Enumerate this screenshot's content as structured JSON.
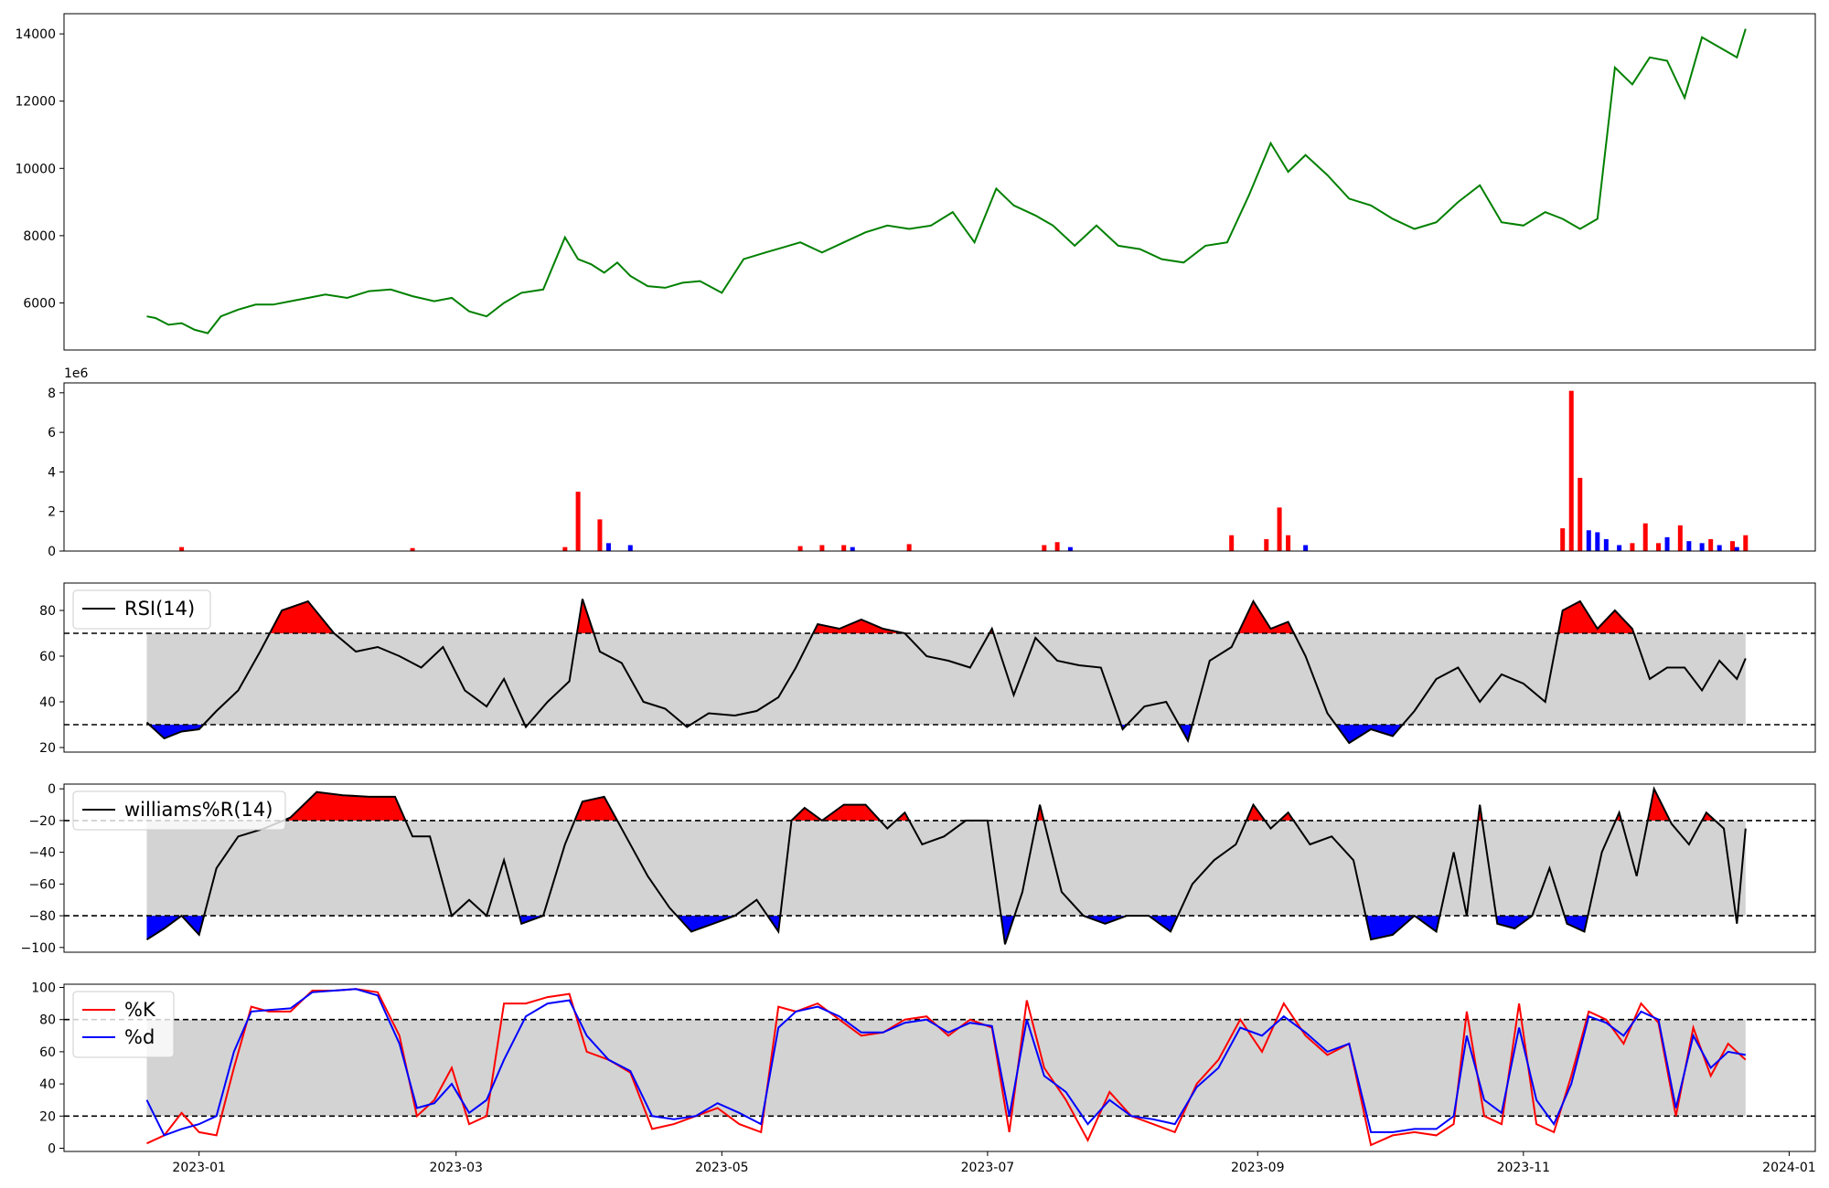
{
  "x_ticks": [
    "2023-01",
    "2023-03",
    "2023-05",
    "2023-07",
    "2023-09",
    "2023-11",
    "2024-01"
  ],
  "colors": {
    "price": "#008000",
    "up": "#ff0000",
    "down": "#0000ff",
    "band": "#d3d3d3",
    "line": "#000000"
  },
  "chart_data": [
    {
      "type": "line",
      "title": "",
      "ylabel": "",
      "ylim": [
        4600,
        14600
      ],
      "yticks": [
        "6000",
        "8000",
        "10000",
        "12000",
        "14000"
      ],
      "x": [
        "2022-12-20",
        "2022-12-22",
        "2022-12-25",
        "2022-12-28",
        "2022-12-31",
        "2023-01-03",
        "2023-01-06",
        "2023-01-10",
        "2023-01-14",
        "2023-01-18",
        "2023-01-22",
        "2023-01-26",
        "2023-01-30",
        "2023-02-04",
        "2023-02-09",
        "2023-02-14",
        "2023-02-19",
        "2023-02-24",
        "2023-02-28",
        "2023-03-04",
        "2023-03-08",
        "2023-03-12",
        "2023-03-16",
        "2023-03-21",
        "2023-03-26",
        "2023-03-29",
        "2023-04-01",
        "2023-04-04",
        "2023-04-07",
        "2023-04-10",
        "2023-04-14",
        "2023-04-18",
        "2023-04-22",
        "2023-04-26",
        "2023-05-01",
        "2023-05-06",
        "2023-05-11",
        "2023-05-15",
        "2023-05-19",
        "2023-05-24",
        "2023-05-29",
        "2023-06-03",
        "2023-06-08",
        "2023-06-13",
        "2023-06-18",
        "2023-06-23",
        "2023-06-28",
        "2023-07-03",
        "2023-07-07",
        "2023-07-12",
        "2023-07-16",
        "2023-07-21",
        "2023-07-26",
        "2023-07-31",
        "2023-08-05",
        "2023-08-10",
        "2023-08-15",
        "2023-08-20",
        "2023-08-25",
        "2023-08-30",
        "2023-09-04",
        "2023-09-08",
        "2023-09-12",
        "2023-09-17",
        "2023-09-22",
        "2023-09-27",
        "2023-10-02",
        "2023-10-07",
        "2023-10-12",
        "2023-10-17",
        "2023-10-22",
        "2023-10-27",
        "2023-11-01",
        "2023-11-06",
        "2023-11-10",
        "2023-11-14",
        "2023-11-18",
        "2023-11-22",
        "2023-11-26",
        "2023-11-30",
        "2023-12-04",
        "2023-12-08",
        "2023-12-12",
        "2023-12-16",
        "2023-12-20",
        "2023-12-22"
      ],
      "series": [
        {
          "values": [
            5600,
            5550,
            5350,
            5400,
            5200,
            5100,
            5600,
            5800,
            5950,
            5950,
            6050,
            6150,
            6250,
            6150,
            6350,
            6400,
            6200,
            6050,
            6150,
            5750,
            5600,
            6000,
            6300,
            6400,
            7950,
            7300,
            7150,
            6900,
            7200,
            6800,
            6500,
            6450,
            6600,
            6650,
            6300,
            7300,
            7500,
            7650,
            7800,
            7500,
            7800,
            8100,
            8300,
            8200,
            8300,
            8700,
            7800,
            9400,
            8900,
            8600,
            8300,
            7700,
            8300,
            7700,
            7600,
            7300,
            7200,
            7700,
            7800,
            9200,
            10750,
            9900,
            10400,
            9800,
            9100,
            8900,
            8500,
            8200,
            8400,
            9000,
            9500,
            8400,
            8300,
            8700,
            8500,
            8200,
            8500,
            13000,
            12500,
            13300,
            13200,
            12100,
            13900,
            13600,
            13300,
            14150
          ]
        }
      ]
    },
    {
      "type": "bar",
      "title": "",
      "ylabel": "",
      "offset_label": "1e6",
      "ylim": [
        0,
        8.5
      ],
      "yticks": [
        "0",
        "2",
        "4",
        "6",
        "8"
      ],
      "series": [
        {
          "x": [
            "2022-12-28",
            "2023-02-19",
            "2023-03-26",
            "2023-03-29",
            "2023-04-03",
            "2023-05-19",
            "2023-05-24",
            "2023-05-29",
            "2023-06-13",
            "2023-07-14",
            "2023-07-17",
            "2023-08-26",
            "2023-09-03",
            "2023-09-06",
            "2023-09-08",
            "2023-11-10",
            "2023-11-12",
            "2023-11-14",
            "2023-11-26",
            "2023-11-29",
            "2023-12-02",
            "2023-12-07",
            "2023-12-14",
            "2023-12-19",
            "2023-12-22"
          ],
          "values": [
            0.2,
            0.15,
            0.2,
            3.0,
            1.6,
            0.25,
            0.3,
            0.3,
            0.35,
            0.3,
            0.45,
            0.8,
            0.6,
            2.2,
            0.8,
            1.15,
            8.1,
            3.7,
            0.4,
            1.4,
            0.4,
            1.3,
            0.6,
            0.5,
            0.8
          ]
        },
        {
          "x": [
            "2023-04-05",
            "2023-04-10",
            "2023-05-31",
            "2023-07-20",
            "2023-09-12",
            "2023-11-16",
            "2023-11-18",
            "2023-11-20",
            "2023-11-23",
            "2023-12-04",
            "2023-12-09",
            "2023-12-12",
            "2023-12-16",
            "2023-12-20"
          ],
          "values": [
            0.4,
            0.3,
            0.2,
            0.2,
            0.3,
            1.05,
            0.95,
            0.6,
            0.3,
            0.7,
            0.5,
            0.4,
            0.3,
            0.2
          ]
        }
      ]
    },
    {
      "type": "line",
      "title": "",
      "ylim": [
        18,
        92
      ],
      "yticks": [
        "20",
        "40",
        "60",
        "80"
      ],
      "thresholds": [
        70,
        30
      ],
      "x": [
        "2022-12-20",
        "2022-12-24",
        "2022-12-28",
        "2023-01-01",
        "2023-01-05",
        "2023-01-10",
        "2023-01-15",
        "2023-01-20",
        "2023-01-26",
        "2023-02-01",
        "2023-02-06",
        "2023-02-11",
        "2023-02-16",
        "2023-02-21",
        "2023-02-26",
        "2023-03-03",
        "2023-03-08",
        "2023-03-12",
        "2023-03-17",
        "2023-03-22",
        "2023-03-27",
        "2023-03-30",
        "2023-04-03",
        "2023-04-08",
        "2023-04-13",
        "2023-04-18",
        "2023-04-23",
        "2023-04-28",
        "2023-05-04",
        "2023-05-09",
        "2023-05-14",
        "2023-05-18",
        "2023-05-23",
        "2023-05-28",
        "2023-06-02",
        "2023-06-07",
        "2023-06-12",
        "2023-06-17",
        "2023-06-22",
        "2023-06-27",
        "2023-07-02",
        "2023-07-07",
        "2023-07-12",
        "2023-07-17",
        "2023-07-22",
        "2023-07-27",
        "2023-08-01",
        "2023-08-06",
        "2023-08-11",
        "2023-08-16",
        "2023-08-21",
        "2023-08-26",
        "2023-08-31",
        "2023-09-04",
        "2023-09-08",
        "2023-09-12",
        "2023-09-17",
        "2023-09-22",
        "2023-09-27",
        "2023-10-02",
        "2023-10-07",
        "2023-10-12",
        "2023-10-17",
        "2023-10-22",
        "2023-10-27",
        "2023-11-01",
        "2023-11-06",
        "2023-11-10",
        "2023-11-14",
        "2023-11-18",
        "2023-11-22",
        "2023-11-26",
        "2023-11-30",
        "2023-12-04",
        "2023-12-08",
        "2023-12-12",
        "2023-12-16",
        "2023-12-20",
        "2023-12-22"
      ],
      "series": [
        {
          "name": "RSI(14)",
          "values": [
            31,
            24,
            27,
            28,
            36,
            45,
            62,
            80,
            84,
            70,
            62,
            64,
            60,
            55,
            64,
            45,
            38,
            50,
            29,
            40,
            49,
            85,
            62,
            57,
            40,
            37,
            29,
            35,
            34,
            36,
            42,
            55,
            74,
            72,
            76,
            72,
            70,
            60,
            58,
            55,
            72,
            43,
            68,
            58,
            56,
            55,
            28,
            38,
            40,
            23,
            58,
            64,
            84,
            72,
            75,
            60,
            35,
            22,
            28,
            25,
            36,
            50,
            55,
            40,
            52,
            48,
            40,
            80,
            84,
            72,
            80,
            72,
            50,
            55,
            55,
            45,
            58,
            50,
            59
          ]
        }
      ]
    },
    {
      "type": "line",
      "title": "",
      "ylim": [
        -103,
        3
      ],
      "yticks": [
        "0",
        "−20",
        "−40",
        "−60",
        "−80",
        "−100"
      ],
      "thresholds": [
        -20,
        -80
      ],
      "x": [
        "2022-12-20",
        "2022-12-24",
        "2022-12-28",
        "2023-01-01",
        "2023-01-05",
        "2023-01-10",
        "2023-01-16",
        "2023-01-22",
        "2023-01-28",
        "2023-02-03",
        "2023-02-09",
        "2023-02-15",
        "2023-02-19",
        "2023-02-23",
        "2023-02-28",
        "2023-03-04",
        "2023-03-08",
        "2023-03-12",
        "2023-03-16",
        "2023-03-21",
        "2023-03-26",
        "2023-03-30",
        "2023-04-04",
        "2023-04-09",
        "2023-04-14",
        "2023-04-19",
        "2023-04-24",
        "2023-04-29",
        "2023-05-04",
        "2023-05-09",
        "2023-05-14",
        "2023-05-17",
        "2023-05-20",
        "2023-05-24",
        "2023-05-29",
        "2023-06-03",
        "2023-06-08",
        "2023-06-12",
        "2023-06-16",
        "2023-06-21",
        "2023-06-26",
        "2023-07-01",
        "2023-07-05",
        "2023-07-09",
        "2023-07-13",
        "2023-07-18",
        "2023-07-23",
        "2023-07-28",
        "2023-08-02",
        "2023-08-07",
        "2023-08-12",
        "2023-08-17",
        "2023-08-22",
        "2023-08-27",
        "2023-08-31",
        "2023-09-04",
        "2023-09-08",
        "2023-09-13",
        "2023-09-18",
        "2023-09-23",
        "2023-09-27",
        "2023-10-02",
        "2023-10-07",
        "2023-10-12",
        "2023-10-16",
        "2023-10-19",
        "2023-10-22",
        "2023-10-26",
        "2023-10-30",
        "2023-11-03",
        "2023-11-07",
        "2023-11-11",
        "2023-11-15",
        "2023-11-19",
        "2023-11-23",
        "2023-11-27",
        "2023-12-01",
        "2023-12-05",
        "2023-12-09",
        "2023-12-13",
        "2023-12-17",
        "2023-12-20",
        "2023-12-22"
      ],
      "series": [
        {
          "name": "williams%R(14)",
          "values": [
            -95,
            -88,
            -80,
            -92,
            -50,
            -30,
            -25,
            -18,
            -2,
            -4,
            -5,
            -5,
            -30,
            -30,
            -80,
            -70,
            -80,
            -45,
            -85,
            -80,
            -35,
            -8,
            -5,
            -30,
            -55,
            -75,
            -90,
            -85,
            -80,
            -70,
            -90,
            -20,
            -12,
            -20,
            -10,
            -10,
            -25,
            -15,
            -35,
            -30,
            -20,
            -20,
            -98,
            -65,
            -10,
            -65,
            -80,
            -85,
            -80,
            -80,
            -90,
            -60,
            -45,
            -35,
            -10,
            -25,
            -15,
            -35,
            -30,
            -45,
            -95,
            -92,
            -80,
            -90,
            -40,
            -80,
            -10,
            -85,
            -88,
            -80,
            -50,
            -85,
            -90,
            -40,
            -15,
            -55,
            0,
            -22,
            -35,
            -15,
            -25,
            -85,
            -25
          ]
        }
      ]
    },
    {
      "type": "line",
      "title": "",
      "ylim": [
        -2,
        102
      ],
      "yticks": [
        "0",
        "20",
        "40",
        "60",
        "80",
        "100"
      ],
      "thresholds": [
        80,
        20
      ],
      "x": [
        "2022-12-20",
        "2022-12-24",
        "2022-12-28",
        "2023-01-01",
        "2023-01-05",
        "2023-01-09",
        "2023-01-13",
        "2023-01-17",
        "2023-01-22",
        "2023-01-27",
        "2023-02-01",
        "2023-02-06",
        "2023-02-11",
        "2023-02-16",
        "2023-02-20",
        "2023-02-24",
        "2023-02-28",
        "2023-03-04",
        "2023-03-08",
        "2023-03-12",
        "2023-03-17",
        "2023-03-22",
        "2023-03-27",
        "2023-03-31",
        "2023-04-05",
        "2023-04-10",
        "2023-04-15",
        "2023-04-20",
        "2023-04-25",
        "2023-04-30",
        "2023-05-05",
        "2023-05-10",
        "2023-05-14",
        "2023-05-18",
        "2023-05-23",
        "2023-05-28",
        "2023-06-02",
        "2023-06-07",
        "2023-06-12",
        "2023-06-17",
        "2023-06-22",
        "2023-06-27",
        "2023-07-02",
        "2023-07-06",
        "2023-07-10",
        "2023-07-14",
        "2023-07-19",
        "2023-07-24",
        "2023-07-29",
        "2023-08-03",
        "2023-08-08",
        "2023-08-13",
        "2023-08-18",
        "2023-08-23",
        "2023-08-28",
        "2023-09-02",
        "2023-09-07",
        "2023-09-12",
        "2023-09-17",
        "2023-09-22",
        "2023-09-27",
        "2023-10-02",
        "2023-10-07",
        "2023-10-12",
        "2023-10-16",
        "2023-10-19",
        "2023-10-23",
        "2023-10-27",
        "2023-10-31",
        "2023-11-04",
        "2023-11-08",
        "2023-11-12",
        "2023-11-16",
        "2023-11-20",
        "2023-11-24",
        "2023-11-28",
        "2023-12-02",
        "2023-12-06",
        "2023-12-10",
        "2023-12-14",
        "2023-12-18",
        "2023-12-22"
      ],
      "series": [
        {
          "name": "%K",
          "values": [
            3,
            8,
            22,
            10,
            8,
            50,
            88,
            85,
            85,
            98,
            98,
            99,
            97,
            70,
            20,
            30,
            50,
            15,
            20,
            90,
            90,
            94,
            96,
            60,
            55,
            47,
            12,
            15,
            20,
            25,
            15,
            10,
            88,
            85,
            90,
            80,
            70,
            72,
            80,
            82,
            70,
            80,
            75,
            10,
            92,
            50,
            30,
            5,
            35,
            20,
            15,
            10,
            40,
            55,
            80,
            60,
            90,
            70,
            58,
            65,
            2,
            8,
            10,
            8,
            15,
            85,
            20,
            15,
            90,
            15,
            10,
            45,
            85,
            80,
            65,
            90,
            78,
            20,
            75,
            45,
            65,
            55
          ]
        },
        {
          "name": "%d",
          "values": [
            30,
            8,
            12,
            15,
            20,
            60,
            85,
            86,
            87,
            97,
            98,
            99,
            95,
            65,
            25,
            28,
            40,
            22,
            30,
            55,
            82,
            90,
            92,
            70,
            55,
            48,
            20,
            18,
            20,
            28,
            22,
            15,
            75,
            85,
            88,
            82,
            72,
            72,
            78,
            80,
            72,
            78,
            76,
            20,
            80,
            45,
            35,
            15,
            30,
            20,
            18,
            15,
            38,
            50,
            75,
            70,
            82,
            72,
            60,
            65,
            10,
            10,
            12,
            12,
            20,
            70,
            30,
            22,
            75,
            30,
            15,
            40,
            82,
            78,
            70,
            85,
            80,
            25,
            70,
            50,
            60,
            58
          ]
        }
      ]
    }
  ]
}
